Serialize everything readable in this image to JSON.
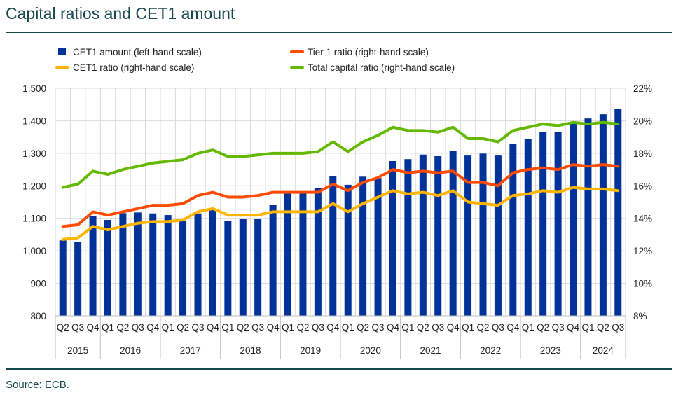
{
  "title": "Capital ratios and CET1 amount",
  "source": "Source: ECB.",
  "chart_data": {
    "type": "bar+line",
    "title": "Capital ratios and CET1 amount",
    "categories": [
      "Q2",
      "Q3",
      "Q4",
      "Q1",
      "Q2",
      "Q3",
      "Q4",
      "Q1",
      "Q2",
      "Q3",
      "Q4",
      "Q1",
      "Q2",
      "Q3",
      "Q4",
      "Q1",
      "Q2",
      "Q3",
      "Q4",
      "Q1",
      "Q2",
      "Q3",
      "Q4",
      "Q1",
      "Q2",
      "Q3",
      "Q4",
      "Q1",
      "Q2",
      "Q3",
      "Q4",
      "Q1",
      "Q2",
      "Q3",
      "Q4",
      "Q1",
      "Q2",
      "Q3"
    ],
    "years": [
      {
        "label": "2015",
        "count": 3
      },
      {
        "label": "2016",
        "count": 4
      },
      {
        "label": "2017",
        "count": 4
      },
      {
        "label": "2018",
        "count": 4
      },
      {
        "label": "2019",
        "count": 4
      },
      {
        "label": "2020",
        "count": 4
      },
      {
        "label": "2021",
        "count": 4
      },
      {
        "label": "2022",
        "count": 4
      },
      {
        "label": "2023",
        "count": 4
      },
      {
        "label": "2024",
        "count": 3
      }
    ],
    "left_axis": {
      "range": [
        800,
        1500
      ],
      "ticks": [
        "800",
        "900",
        "1,000",
        "1,100",
        "1,200",
        "1,300",
        "1,400",
        "1,500"
      ]
    },
    "right_axis": {
      "range": [
        8,
        22
      ],
      "ticks": [
        "8%",
        "10%",
        "12%",
        "14%",
        "16%",
        "18%",
        "20%",
        "22%"
      ]
    },
    "grid": true,
    "legend_placement": "top",
    "series": [
      {
        "name": "CET1 amount (left-hand scale)",
        "type": "bar",
        "axis": "left",
        "color": "#003299",
        "values": [
          1032,
          1028,
          1106,
          1095,
          1116,
          1118,
          1115,
          1110,
          1093,
          1115,
          1125,
          1092,
          1099,
          1099,
          1142,
          1181,
          1178,
          1192,
          1229,
          1203,
          1228,
          1224,
          1276,
          1282,
          1296,
          1291,
          1307,
          1293,
          1299,
          1293,
          1329,
          1344,
          1365,
          1365,
          1394,
          1407,
          1420,
          1436
        ]
      },
      {
        "name": "Tier 1 ratio (right-hand scale)",
        "type": "line",
        "axis": "right",
        "color": "#ff4b00",
        "values": [
          13.5,
          13.6,
          14.4,
          14.2,
          14.4,
          14.6,
          14.8,
          14.8,
          14.9,
          15.4,
          15.6,
          15.3,
          15.3,
          15.4,
          15.6,
          15.6,
          15.6,
          15.6,
          16.1,
          15.7,
          16.2,
          16.5,
          17.0,
          16.8,
          16.9,
          16.8,
          16.9,
          16.2,
          16.2,
          16.0,
          16.8,
          17.0,
          17.1,
          17.0,
          17.3,
          17.2,
          17.3,
          17.2
        ]
      },
      {
        "name": "CET1 ratio (right-hand scale)",
        "type": "line",
        "axis": "right",
        "color": "#ffb400",
        "values": [
          12.7,
          12.8,
          13.5,
          13.3,
          13.5,
          13.7,
          13.8,
          13.8,
          13.9,
          14.4,
          14.6,
          14.2,
          14.2,
          14.2,
          14.4,
          14.4,
          14.4,
          14.4,
          14.9,
          14.4,
          14.9,
          15.3,
          15.7,
          15.5,
          15.6,
          15.4,
          15.7,
          15.0,
          14.9,
          14.8,
          15.4,
          15.5,
          15.7,
          15.6,
          15.9,
          15.8,
          15.8,
          15.7
        ]
      },
      {
        "name": "Total capital ratio (right-hand scale)",
        "type": "line",
        "axis": "right",
        "color": "#65b800",
        "values": [
          15.9,
          16.1,
          16.9,
          16.7,
          17.0,
          17.2,
          17.4,
          17.5,
          17.6,
          18.0,
          18.2,
          17.8,
          17.8,
          17.9,
          18.0,
          18.0,
          18.0,
          18.1,
          18.7,
          18.1,
          18.7,
          19.1,
          19.6,
          19.4,
          19.4,
          19.3,
          19.6,
          18.9,
          18.9,
          18.7,
          19.4,
          19.6,
          19.8,
          19.7,
          19.9,
          19.8,
          19.9,
          19.8
        ]
      }
    ]
  }
}
